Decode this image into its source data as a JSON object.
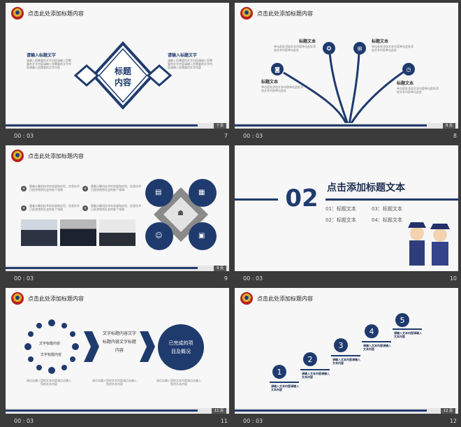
{
  "common": {
    "time": "00 : 03",
    "header_title": "点击此处添加标题内容"
  },
  "slides": [
    {
      "num": "7",
      "page_label": "7 页",
      "left_heading": "请输入标题文字",
      "right_heading": "请输入标题文字",
      "left_body": "请输入您需要的文字内容请输入您需要的文字内容请输入您需要的文字内容请输入您需要的文字内容",
      "right_body": "请输入您需要的文字内容请输入您需要的文字内容请输入您需要的文字内容请输入您需要的文字内容",
      "center_text": "标题\n内容"
    },
    {
      "num": "8",
      "page_label": "8 页",
      "labels": [
        "标题文本",
        "标题文本",
        "标题文本",
        "标题文本"
      ],
      "body": "单击此处添加文本内容单击此处添加文本内容单击此处"
    },
    {
      "num": "9",
      "page_label": "9 页",
      "bullets": [
        "随着计算机技术的发展和应用，信息技术已经渗透到社会的各个领域",
        "随着计算机技术的发展和应用，信息技术已经渗透到社会的各个领域",
        "随着计算机技术的发展和应用，信息技术已经渗透到社会的各个领域",
        "随着计算机技术的发展和应用，信息技术已经渗透到社会的各个领域"
      ]
    },
    {
      "num": "10",
      "big_num": "02",
      "heading": "点击添加标题文本",
      "items": [
        "01：标题文本",
        "03：标题文本",
        "02：标题文本",
        "04：标题文本"
      ]
    },
    {
      "num": "11",
      "page_label": "11 页",
      "ring_label_1": "文字标题内容",
      "ring_label_2": "文字标题内容",
      "middle_text": "文字标题内容文字标题内容文字标题内容",
      "final_circle": "已完成的项目及概况",
      "bottom_1": "请点击输入您的文本内容请点击输入您的文本内容",
      "bottom_2": "请点击输入您的文本内容请点击输入您的文本内容",
      "bottom_3": "请点击输入您的文本内容请点击输入您的文本内容"
    },
    {
      "num": "12",
      "page_label": "12 页",
      "steps": [
        "1",
        "2",
        "3",
        "4",
        "5"
      ],
      "step_text": "请输入文本内容请输入文本内容"
    }
  ]
}
